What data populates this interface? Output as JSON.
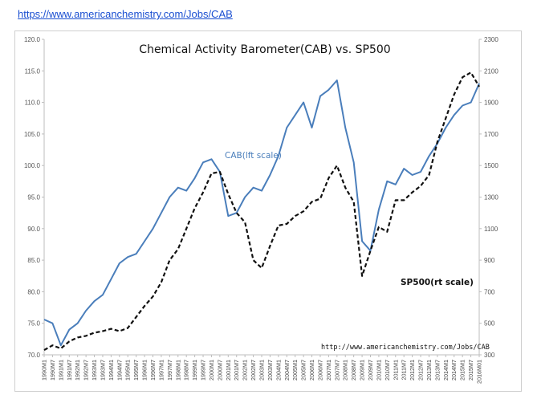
{
  "header": {
    "link_text": "https://www.americanchemistry.com/Jobs/CAB"
  },
  "chart_data": {
    "type": "line",
    "title": "Chemical Activity Barometer(CAB) vs. SP500",
    "annotation_url": "http://www.americanchemistry.com/Jobs/CAB",
    "left_axis": {
      "ticks": [
        "120.0",
        "115.0",
        "110.0",
        "105.0",
        "100.0",
        "95.0",
        "90.0",
        "85.0",
        "80.0",
        "75.0",
        "70.0"
      ],
      "ylim": [
        70,
        120
      ]
    },
    "right_axis": {
      "ticks": [
        "2300",
        "2100",
        "1900",
        "1700",
        "1500",
        "1300",
        "1100",
        "900",
        "700",
        "500",
        "300"
      ],
      "ylim": [
        300,
        2300
      ]
    },
    "x_ticks": [
      "1990M1",
      "1990M7",
      "1991M1",
      "1991M7",
      "1992M1",
      "1992M7",
      "1993M1",
      "1993M7",
      "1994M1",
      "1994M7",
      "1995M1",
      "1995M7",
      "1996M1",
      "1996M7",
      "1997M1",
      "1997M7",
      "1998M1",
      "1998M7",
      "1999M1",
      "1999M7",
      "2000M1",
      "2000M7",
      "2001M1",
      "2001M7",
      "2002M1",
      "2002M7",
      "2003M1",
      "2003M7",
      "2004M1",
      "2004M7",
      "2005M1",
      "2005M7",
      "2006M1",
      "2006M7",
      "2007M1",
      "2007M7",
      "2008M1",
      "2008M7",
      "2009M1",
      "2009M7",
      "2010M1",
      "2010M7",
      "2011M1",
      "2011M7",
      "2012M1",
      "2012M7",
      "2013M1",
      "2013M7",
      "2014M1",
      "2014M7",
      "2015M1",
      "2015M7",
      "2016M01"
    ],
    "grid": false,
    "series": [
      {
        "name": "CAB(lft scale)",
        "axis": "left",
        "color": "#4a7ebb",
        "style": "solid",
        "x": [
          1990.0,
          1990.5,
          1991.0,
          1991.5,
          1992.0,
          1992.5,
          1993.0,
          1993.5,
          1994.0,
          1994.5,
          1995.0,
          1995.5,
          1996.0,
          1996.5,
          1997.0,
          1997.5,
          1998.0,
          1998.5,
          1999.0,
          1999.5,
          2000.0,
          2000.5,
          2001.0,
          2001.5,
          2002.0,
          2002.5,
          2003.0,
          2003.5,
          2004.0,
          2004.5,
          2005.0,
          2005.5,
          2006.0,
          2006.5,
          2007.0,
          2007.5,
          2008.0,
          2008.5,
          2009.0,
          2009.5,
          2010.0,
          2010.5,
          2011.0,
          2011.5,
          2012.0,
          2012.5,
          2013.0,
          2013.5,
          2014.0,
          2014.5,
          2015.0,
          2015.5,
          2016.0
        ],
        "values": [
          75.6,
          75.0,
          71.5,
          74.0,
          75.0,
          77.0,
          78.5,
          79.5,
          82.0,
          84.5,
          85.5,
          86.0,
          88.0,
          90.0,
          92.5,
          95.0,
          96.5,
          96.0,
          98.0,
          100.5,
          101.0,
          99.0,
          92.0,
          92.5,
          95.0,
          96.5,
          96.0,
          98.5,
          101.5,
          106.0,
          108.0,
          110.0,
          106.0,
          111.0,
          112.0,
          113.5,
          106.0,
          100.5,
          88.0,
          86.5,
          93.0,
          97.5,
          97.0,
          99.5,
          98.5,
          99.0,
          101.5,
          103.5,
          106.0,
          108.0,
          109.5,
          110.0,
          113.0
        ]
      },
      {
        "name": "SP500(rt scale)",
        "axis": "right",
        "color": "#111111",
        "style": "dashed",
        "x": [
          1990.0,
          1990.5,
          1991.0,
          1991.5,
          1992.0,
          1992.5,
          1993.0,
          1993.5,
          1994.0,
          1994.5,
          1995.0,
          1995.5,
          1996.0,
          1996.5,
          1997.0,
          1997.5,
          1998.0,
          1998.5,
          1999.0,
          1999.5,
          2000.0,
          2000.5,
          2001.0,
          2001.5,
          2002.0,
          2002.5,
          2003.0,
          2003.5,
          2004.0,
          2004.5,
          2005.0,
          2005.5,
          2006.0,
          2006.5,
          2007.0,
          2007.5,
          2008.0,
          2008.5,
          2009.0,
          2009.5,
          2010.0,
          2010.5,
          2011.0,
          2011.5,
          2012.0,
          2012.5,
          2013.0,
          2013.5,
          2014.0,
          2014.5,
          2015.0,
          2015.5,
          2016.0
        ],
        "values": [
          330,
          360,
          340,
          385,
          410,
          420,
          440,
          450,
          465,
          450,
          470,
          540,
          610,
          670,
          760,
          900,
          970,
          1100,
          1230,
          1330,
          1450,
          1460,
          1320,
          1200,
          1140,
          900,
          850,
          990,
          1120,
          1130,
          1180,
          1210,
          1270,
          1290,
          1420,
          1500,
          1360,
          1270,
          800,
          960,
          1110,
          1080,
          1280,
          1280,
          1330,
          1370,
          1440,
          1650,
          1800,
          1950,
          2060,
          2090,
          2000
        ]
      }
    ]
  }
}
